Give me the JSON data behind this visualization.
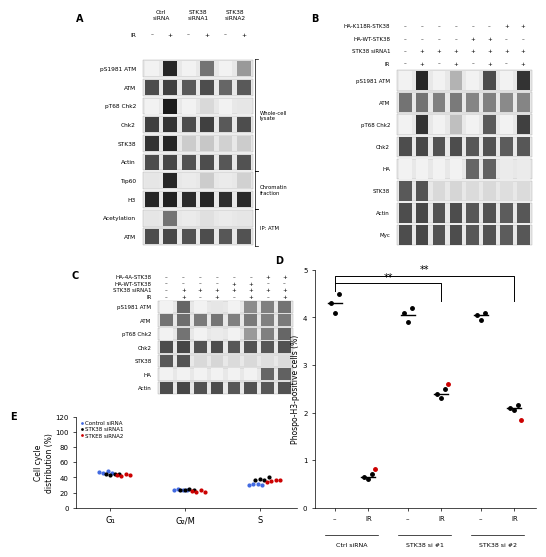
{
  "panel_D": {
    "ylabel": "Phospo-H3-positive cells (%)",
    "ylim": [
      0,
      5
    ],
    "yticks": [
      0,
      1,
      2,
      3,
      4,
      5
    ],
    "black_dots": {
      "ctrl_minus": [
        4.3,
        4.1,
        4.5
      ],
      "ctrl_IR": [
        0.65,
        0.6,
        0.7
      ],
      "stk38si1_minus": [
        4.1,
        3.9,
        4.2
      ],
      "stk38si1_IR": [
        2.4,
        2.3,
        2.5
      ],
      "stk38si2_minus": [
        4.05,
        3.95,
        4.1
      ],
      "stk38si2_IR": [
        2.1,
        2.05,
        2.15
      ]
    },
    "red_dots": {
      "ctrl_minus": [],
      "ctrl_IR": [
        0.82
      ],
      "stk38si1_minus": [],
      "stk38si1_IR": [
        2.6
      ],
      "stk38si2_minus": [],
      "stk38si2_IR": [
        1.85
      ]
    },
    "means": {
      "ctrl_minus": 4.3,
      "ctrl_IR": 0.65,
      "stk38si1_minus": 4.05,
      "stk38si1_IR": 2.4,
      "stk38si2_minus": 4.05,
      "stk38si2_IR": 2.1
    }
  },
  "panel_E": {
    "ylabel": "Cell cycle\ndistribution (%)",
    "ylim": [
      0,
      120
    ],
    "yticks": [
      0,
      20,
      40,
      60,
      80,
      100,
      120
    ],
    "xtick_labels": [
      "G₁",
      "G₂/M",
      "S"
    ],
    "legend": [
      "Control siRNA",
      "STK38 siRNA1",
      "STKE8 siRNA2"
    ],
    "legend_colors": [
      "#4169e1",
      "#000000",
      "#cc0000"
    ],
    "blue_dots": {
      "G1": [
        47,
        46,
        48,
        46
      ],
      "G2M": [
        24,
        25,
        23,
        24
      ],
      "S": [
        30,
        31,
        32,
        30
      ]
    },
    "black_dots": {
      "G1": [
        44,
        43,
        45,
        44
      ],
      "G2M": [
        24,
        23,
        25,
        24
      ],
      "S": [
        37,
        38,
        36,
        40
      ]
    },
    "red_dots": {
      "G1": [
        43,
        42,
        44,
        43
      ],
      "G2M": [
        22,
        21,
        23,
        21
      ],
      "S": [
        34,
        35,
        36,
        37
      ]
    }
  },
  "panel_A": {
    "label": "A",
    "header": [
      "Ctrl\nsiRNA",
      "STK38\nsiRNA1",
      "STK38\nsiRNA2"
    ],
    "header_cols": 6,
    "ir_row": [
      "–",
      "+",
      "–",
      "+",
      "–",
      "+"
    ],
    "wb_labels": [
      "pS1981 ATM",
      "ATM",
      "pT68 Chk2",
      "Chk2",
      "STK38",
      "Actin",
      "Tip60",
      "H3",
      "Acetylation",
      "ATM"
    ],
    "bracket_labels": [
      "Whole-cell\nlysate",
      "Chromatin\nfraction",
      "IP: ATM"
    ],
    "bracket_rows": [
      [
        0,
        5
      ],
      [
        6,
        7
      ],
      [
        8,
        9
      ]
    ],
    "band_intensities": [
      [
        0.05,
        0.85,
        0.05,
        0.55,
        0.05,
        0.4
      ],
      [
        0.7,
        0.75,
        0.65,
        0.7,
        0.6,
        0.65
      ],
      [
        0.05,
        0.9,
        0.05,
        0.15,
        0.05,
        0.1
      ],
      [
        0.75,
        0.8,
        0.7,
        0.75,
        0.65,
        0.7
      ],
      [
        0.8,
        0.85,
        0.2,
        0.22,
        0.18,
        0.2
      ],
      [
        0.7,
        0.72,
        0.68,
        0.7,
        0.66,
        0.68
      ],
      [
        0.1,
        0.85,
        0.08,
        0.2,
        0.08,
        0.18
      ],
      [
        0.85,
        0.87,
        0.83,
        0.85,
        0.82,
        0.84
      ],
      [
        0.1,
        0.55,
        0.08,
        0.12,
        0.08,
        0.1
      ],
      [
        0.7,
        0.72,
        0.68,
        0.7,
        0.66,
        0.68
      ]
    ]
  },
  "panel_B": {
    "label": "B",
    "header": [
      "HA-K118R-STK38",
      "HA-WT-STK38",
      "STK38 siRNA1",
      "IR"
    ],
    "header_vals": [
      [
        "–",
        "–",
        "–",
        "–",
        "–",
        "–",
        "+",
        "+"
      ],
      [
        "–",
        "–",
        "–",
        "–",
        "+",
        "+",
        "–",
        "–"
      ],
      [
        "–",
        "+",
        "+",
        "+",
        "+",
        "+",
        "+",
        "+"
      ],
      [
        "–",
        "+",
        "–",
        "+",
        "–",
        "+",
        "–",
        "+"
      ]
    ],
    "wb_labels": [
      "pS1981 ATM",
      "ATM",
      "pT68 Chk2",
      "Chk2",
      "HA",
      "STK38",
      "Actin",
      "Myc"
    ],
    "band_intensities": [
      [
        0.05,
        0.85,
        0.05,
        0.3,
        0.05,
        0.7,
        0.05,
        0.8
      ],
      [
        0.55,
        0.55,
        0.5,
        0.52,
        0.48,
        0.5,
        0.46,
        0.48
      ],
      [
        0.05,
        0.8,
        0.05,
        0.25,
        0.05,
        0.65,
        0.05,
        0.75
      ],
      [
        0.7,
        0.72,
        0.68,
        0.7,
        0.66,
        0.68,
        0.64,
        0.66
      ],
      [
        0.05,
        0.05,
        0.05,
        0.05,
        0.6,
        0.62,
        0.08,
        0.08
      ],
      [
        0.65,
        0.67,
        0.15,
        0.16,
        0.14,
        0.15,
        0.13,
        0.14
      ],
      [
        0.7,
        0.72,
        0.68,
        0.7,
        0.66,
        0.68,
        0.64,
        0.66
      ],
      [
        0.7,
        0.72,
        0.68,
        0.7,
        0.66,
        0.68,
        0.64,
        0.66
      ]
    ]
  },
  "panel_C": {
    "label": "C",
    "header": [
      "HA-4A-STK38",
      "HA-WT-STK38",
      "STK38 siRNA1",
      "IR"
    ],
    "header_vals": [
      [
        "–",
        "–",
        "–",
        "–",
        "–",
        "–",
        "+",
        "+"
      ],
      [
        "–",
        "–",
        "–",
        "–",
        "+",
        "+",
        "–",
        "–"
      ],
      [
        "–",
        "+",
        "+",
        "+",
        "+",
        "+",
        "+",
        "+"
      ],
      [
        "–",
        "+",
        "–",
        "+",
        "–",
        "+",
        "–",
        "+"
      ]
    ],
    "wb_labels": [
      "pS1981 ATM",
      "ATM",
      "pT68 Chk2",
      "Chk2",
      "STK38",
      "HA",
      "Actin"
    ],
    "band_intensities": [
      [
        0.05,
        0.6,
        0.05,
        0.1,
        0.05,
        0.45,
        0.5,
        0.55
      ],
      [
        0.55,
        0.57,
        0.52,
        0.54,
        0.5,
        0.52,
        0.5,
        0.52
      ],
      [
        0.05,
        0.55,
        0.05,
        0.08,
        0.05,
        0.4,
        0.5,
        0.6
      ],
      [
        0.7,
        0.72,
        0.68,
        0.7,
        0.66,
        0.68,
        0.66,
        0.68
      ],
      [
        0.65,
        0.67,
        0.15,
        0.16,
        0.14,
        0.15,
        0.13,
        0.14
      ],
      [
        0.05,
        0.05,
        0.05,
        0.05,
        0.05,
        0.05,
        0.6,
        0.62
      ],
      [
        0.7,
        0.72,
        0.68,
        0.7,
        0.66,
        0.68,
        0.66,
        0.68
      ]
    ]
  },
  "bg_color": "#ffffff",
  "text_color": "#000000"
}
